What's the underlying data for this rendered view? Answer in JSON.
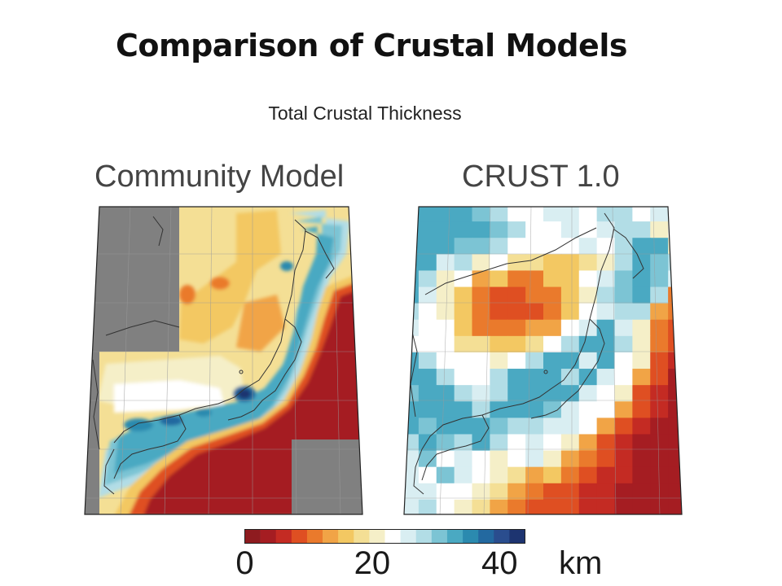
{
  "slide": {
    "title": "Comparison of Crustal Models",
    "subtitle": "Total Crustal Thickness"
  },
  "maps": [
    {
      "id": "left",
      "title": "Community Model"
    },
    {
      "id": "right",
      "title": "CRUST 1.0"
    }
  ],
  "colorbar": {
    "min": 0,
    "max": 44,
    "ticks": [
      {
        "value": 0,
        "label": "0"
      },
      {
        "value": 20,
        "label": "20"
      },
      {
        "value": 40,
        "label": "40"
      }
    ],
    "unit": "km",
    "colors": [
      "#8e1b1f",
      "#a51d22",
      "#c42b23",
      "#df4f22",
      "#ea7a2c",
      "#f1a446",
      "#f3c862",
      "#f4df95",
      "#f5efc8",
      "#ffffff",
      "#d9eef2",
      "#b2dde6",
      "#7cc4d4",
      "#4aa9c2",
      "#2b8aaf",
      "#2369a0",
      "#2a4d8e",
      "#1d3470"
    ]
  },
  "colors": {
    "no_data": "#808080",
    "coastline": "#333333",
    "grid": "#9a9a9a"
  }
}
